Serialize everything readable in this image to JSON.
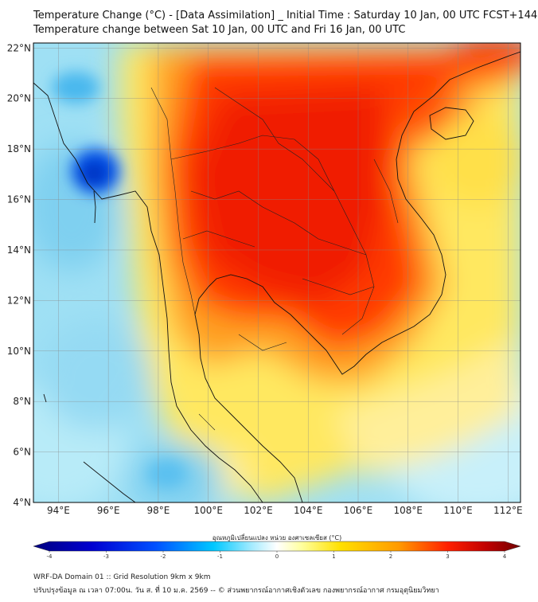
{
  "title_line1": "Temperature Change (°C) - [Data Assimilation] _ Initial Time : Saturday 10 Jan, 00 UTC FCST+144",
  "title_line2": "Temperature change between Sat 10 Jan, 00 UTC and Fri 16 Jan, 00 UTC",
  "map": {
    "lon_range": [
      93,
      112.5
    ],
    "lat_range": [
      4,
      22.2
    ],
    "lon_ticks": [
      "94°E",
      "96°E",
      "98°E",
      "100°E",
      "102°E",
      "104°E",
      "106°E",
      "108°E",
      "110°E",
      "112°E"
    ],
    "lat_ticks": [
      "22°N",
      "20°N",
      "18°N",
      "16°N",
      "14°N",
      "12°N",
      "10°N",
      "8°N",
      "6°N",
      "4°N"
    ],
    "grid": true
  },
  "colorbar": {
    "title": "อุณหภูมิเปลี่ยนแปลง หน่วย องศาเซลเซียส (°C)",
    "min": -4,
    "max": 4,
    "tick_labels": [
      "-4",
      "-3",
      "-2",
      "-1",
      "0",
      "1",
      "2",
      "3",
      "4"
    ],
    "colors": [
      "#00007f",
      "#0000cc",
      "#0040ff",
      "#0090ff",
      "#00d0ff",
      "#80e8ff",
      "#ffffff",
      "#ffff80",
      "#ffd000",
      "#ff9000",
      "#ff3000",
      "#cc0000",
      "#800000"
    ]
  },
  "footer_line1": "WRF-DA Domain 01 :: Grid Resolution 9km x 9km",
  "footer_line2": "ปรับปรุงข้อมูล ณ เวลา 07:00น. วัน ส. ที่ 10 ม.ค. 2569 -- © ส่วนพยากรณ์อากาศเชิงตัวเลข กองพยากรณ์อากาศ กรมอุตุนิยมวิทยา"
}
